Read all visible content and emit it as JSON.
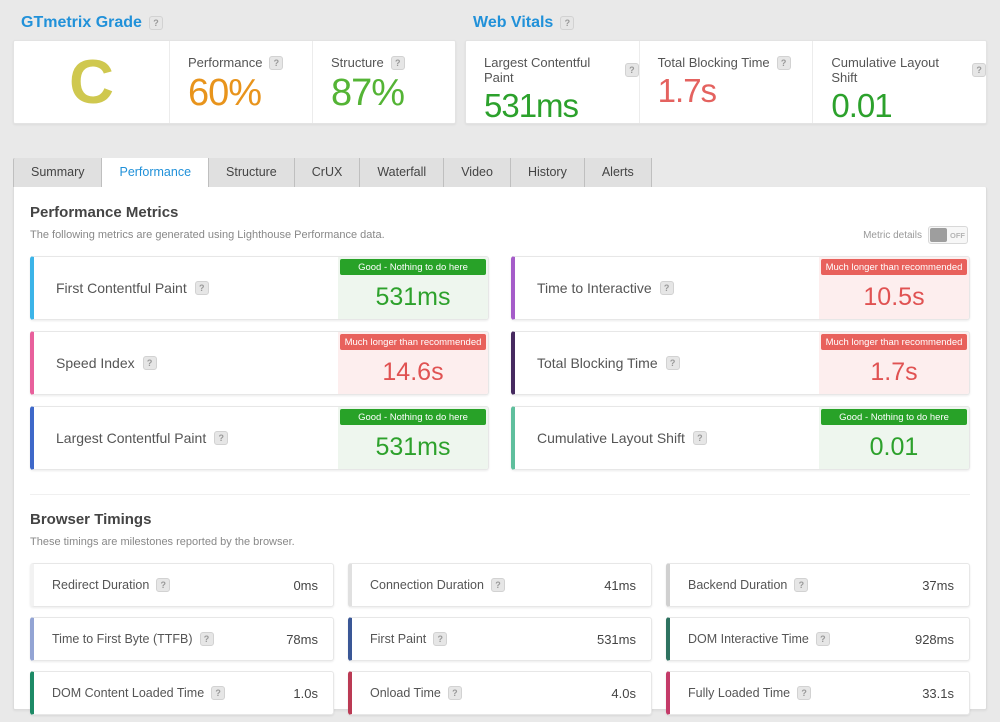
{
  "colors": {
    "accent_blue": "#2191d9",
    "good_green": "#28a228",
    "bad_red": "#e8615c",
    "grade_yellow": "#cfc84f",
    "performance_orange": "#e8941c",
    "structure_green": "#54b435",
    "value_green": "#2ca12c",
    "value_red": "#e4625f"
  },
  "header": {
    "grade_section": {
      "title": "GTmetrix Grade",
      "grade": "C",
      "grade_color": "#cfc84f",
      "metrics": [
        {
          "label": "Performance",
          "value": "60%",
          "color": "#e8941c"
        },
        {
          "label": "Structure",
          "value": "87%",
          "color": "#54b435"
        }
      ]
    },
    "vitals_section": {
      "title": "Web Vitals",
      "metrics": [
        {
          "label": "Largest Contentful Paint",
          "value": "531ms",
          "color": "#2ca12c"
        },
        {
          "label": "Total Blocking Time",
          "value": "1.7s",
          "color": "#e4625f"
        },
        {
          "label": "Cumulative Layout Shift",
          "value": "0.01",
          "color": "#2ca12c"
        }
      ]
    }
  },
  "tabs": [
    {
      "label": "Summary",
      "state": "inactive"
    },
    {
      "label": "Performance",
      "state": "active"
    },
    {
      "label": "Structure",
      "state": "inactive"
    },
    {
      "label": "CrUX",
      "state": "inactive"
    },
    {
      "label": "Waterfall",
      "state": "inactive"
    },
    {
      "label": "Video",
      "state": "inactive"
    },
    {
      "label": "History",
      "state": "inactive"
    },
    {
      "label": "Alerts",
      "state": "inactive"
    }
  ],
  "performance_metrics": {
    "title": "Performance Metrics",
    "subtitle": "The following metrics are generated using Lighthouse Performance data.",
    "toggle_label": "Metric details",
    "toggle_state": "OFF",
    "cards": [
      {
        "label": "First Contentful Paint",
        "badge": "Good - Nothing to do here",
        "value": "531ms",
        "status": "good",
        "accent": "#3cb4e8"
      },
      {
        "label": "Time to Interactive",
        "badge": "Much longer than recommended",
        "value": "10.5s",
        "status": "bad",
        "accent": "#a55cc9"
      },
      {
        "label": "Speed Index",
        "badge": "Much longer than recommended",
        "value": "14.6s",
        "status": "bad",
        "accent": "#e8609c"
      },
      {
        "label": "Total Blocking Time",
        "badge": "Much longer than recommended",
        "value": "1.7s",
        "status": "bad",
        "accent": "#46295f"
      },
      {
        "label": "Largest Contentful Paint",
        "badge": "Good - Nothing to do here",
        "value": "531ms",
        "status": "good",
        "accent": "#3e68c9"
      },
      {
        "label": "Cumulative Layout Shift",
        "badge": "Good - Nothing to do here",
        "value": "0.01",
        "status": "good",
        "accent": "#5fbf9d"
      }
    ]
  },
  "browser_timings": {
    "title": "Browser Timings",
    "subtitle": "These timings are milestones reported by the browser.",
    "cards": [
      {
        "label": "Redirect Duration",
        "value": "0ms",
        "accent": "#f2f2f2"
      },
      {
        "label": "Connection Duration",
        "value": "41ms",
        "accent": "#e0e0e0"
      },
      {
        "label": "Backend Duration",
        "value": "37ms",
        "accent": "#d0d0d0"
      },
      {
        "label": "Time to First Byte (TTFB)",
        "value": "78ms",
        "accent": "#93a4d4"
      },
      {
        "label": "First Paint",
        "value": "531ms",
        "accent": "#3a5796"
      },
      {
        "label": "DOM Interactive Time",
        "value": "928ms",
        "accent": "#2e7260"
      },
      {
        "label": "DOM Content Loaded Time",
        "value": "1.0s",
        "accent": "#1d8a66"
      },
      {
        "label": "Onload Time",
        "value": "4.0s",
        "accent": "#bb3a54"
      },
      {
        "label": "Fully Loaded Time",
        "value": "33.1s",
        "accent": "#c43b69"
      }
    ]
  },
  "help_glyph": "?"
}
